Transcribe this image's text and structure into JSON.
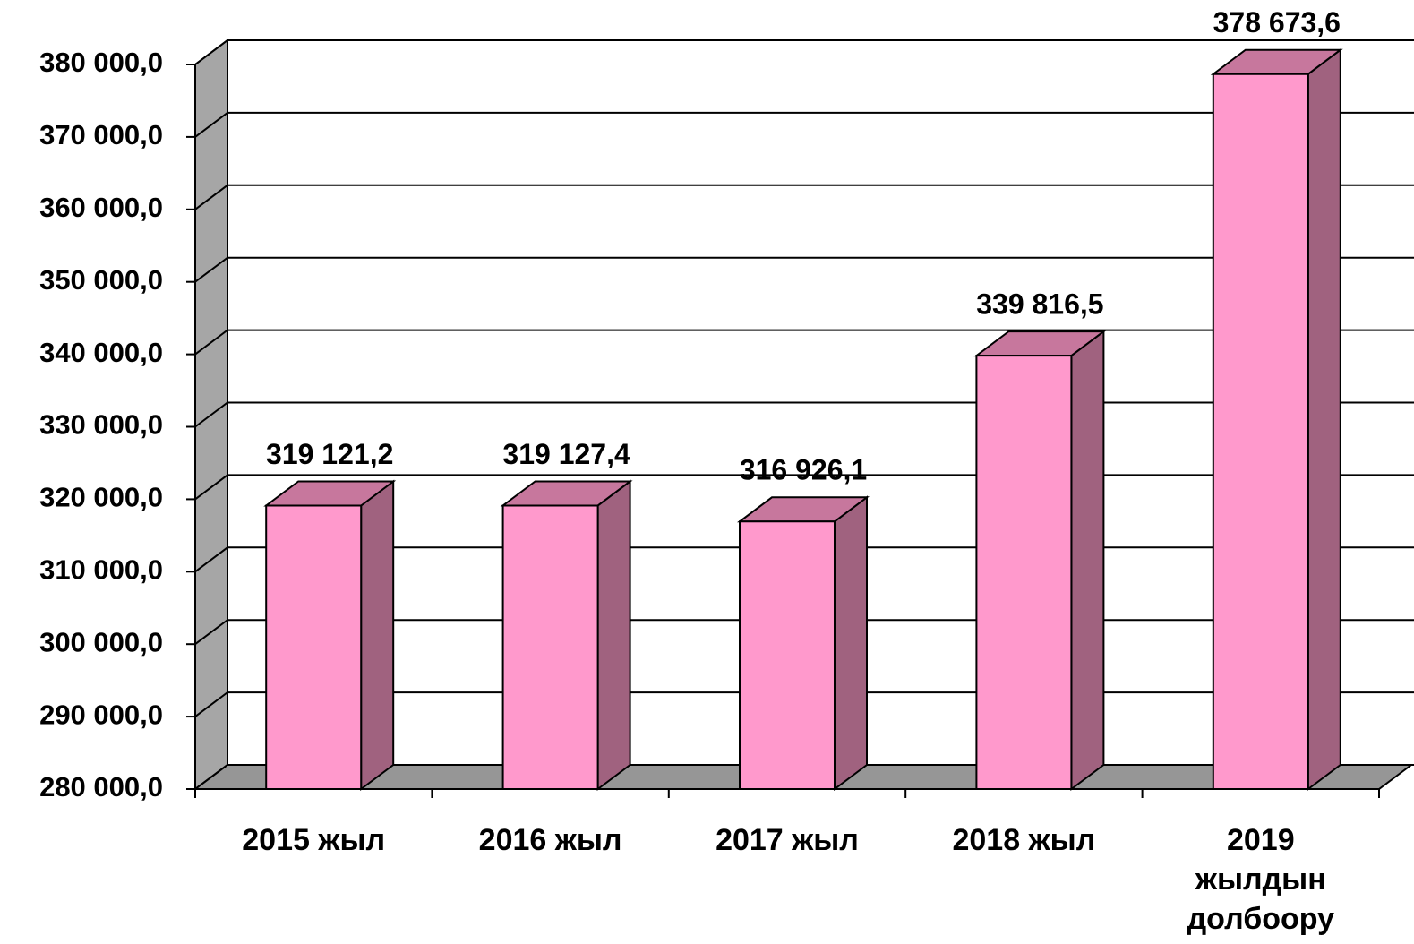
{
  "chart_data": {
    "type": "bar3d",
    "categories": [
      "2015 жыл",
      "2016 жыл",
      "2017 жыл",
      "2018 жыл",
      "2019 жылдын долбоору"
    ],
    "values": [
      319121.2,
      319127.4,
      316926.1,
      339816.5,
      378673.6
    ],
    "value_labels": [
      "319 121,2",
      "319 127,4",
      "316 926,1",
      "339 816,5",
      "378 673,6"
    ],
    "color": "#ff99cc",
    "ylim": [
      280000,
      380000
    ],
    "yticks": [
      {
        "value": 280000,
        "label": "280 000,0"
      },
      {
        "value": 290000,
        "label": "290 000,0"
      },
      {
        "value": 300000,
        "label": "300 000,0"
      },
      {
        "value": 310000,
        "label": "310 000,0"
      },
      {
        "value": 320000,
        "label": "320 000,0"
      },
      {
        "value": 330000,
        "label": "330 000,0"
      },
      {
        "value": 340000,
        "label": "340 000,0"
      },
      {
        "value": 350000,
        "label": "350 000,0"
      },
      {
        "value": 360000,
        "label": "360 000,0"
      },
      {
        "value": 370000,
        "label": "370 000,0"
      },
      {
        "value": 380000,
        "label": "380 000,0"
      }
    ],
    "grid": true
  }
}
